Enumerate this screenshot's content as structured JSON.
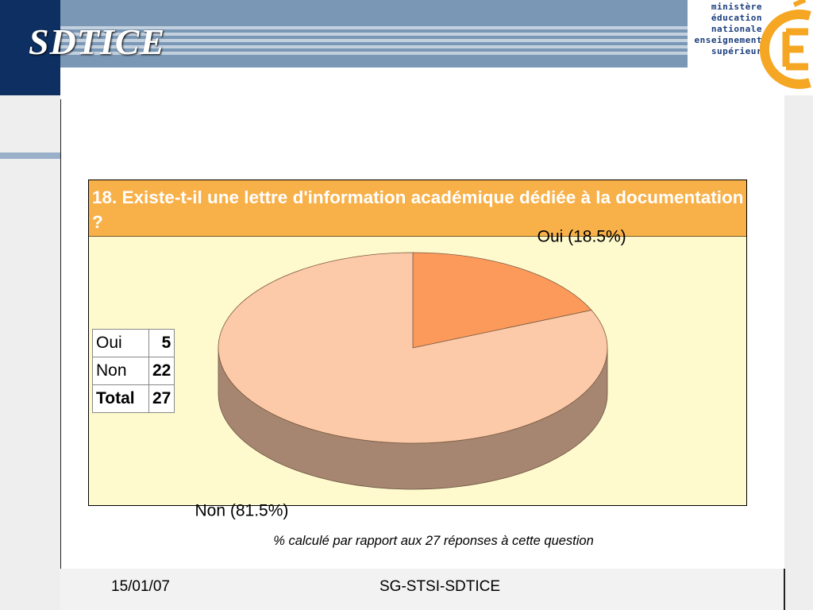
{
  "header": {
    "title": "SDTICE"
  },
  "logo": {
    "lines": [
      "ministère",
      "éducation",
      "nationale",
      "enseignement",
      "supérieur"
    ]
  },
  "question": "18. Existe-t-il une lettre d'information académique dédiée à la documentation ?",
  "table": {
    "rows": [
      {
        "label": "Oui",
        "value": "5"
      },
      {
        "label": "Non",
        "value": "22"
      }
    ],
    "total": {
      "label": "Total",
      "value": "27"
    }
  },
  "note": "% calculé par rapport aux 27 réponses à cette question",
  "footer": {
    "date": "15/01/07",
    "org": "SG-STSI-SDTICE"
  },
  "colors": {
    "header_dark": "#0d2f61",
    "header_band": "#7a98b6",
    "panel_bg": "#fffacd",
    "question_bar": "#f8b048",
    "slice_oui": "#fc9a5c",
    "slice_non": "#fccaa8",
    "pie_side": "#a68670"
  },
  "chart_data": {
    "type": "pie",
    "style": "3d",
    "slices": [
      {
        "label": "Oui (18.5%)",
        "category": "Oui",
        "value": 5,
        "percent": 18.5
      },
      {
        "label": "Non (81.5%)",
        "category": "Non",
        "value": 22,
        "percent": 81.5
      }
    ]
  }
}
